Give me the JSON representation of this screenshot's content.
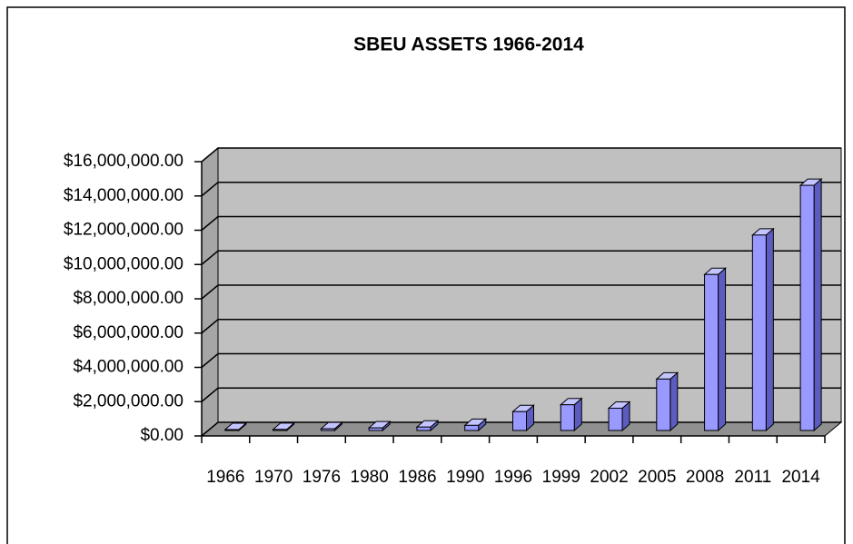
{
  "chart_data": {
    "type": "bar3d",
    "title": "SBEU ASSETS 1966-2014",
    "categories": [
      "1966",
      "1970",
      "1976",
      "1980",
      "1986",
      "1990",
      "1996",
      "1999",
      "2002",
      "2005",
      "2008",
      "2011",
      "2014"
    ],
    "values": [
      50000,
      60000,
      100000,
      150000,
      200000,
      300000,
      1100000,
      1500000,
      1300000,
      3000000,
      9100000,
      11400000,
      14300000
    ],
    "color": "#9999ff",
    "ylim": [
      0,
      16000000
    ],
    "yticks": [
      {
        "value": 0,
        "label": "$0.00"
      },
      {
        "value": 2000000,
        "label": "$2,000,000.00"
      },
      {
        "value": 4000000,
        "label": "$4,000,000.00"
      },
      {
        "value": 6000000,
        "label": "$6,000,000.00"
      },
      {
        "value": 8000000,
        "label": "$8,000,000.00"
      },
      {
        "value": 10000000,
        "label": "$10,000,000.00"
      },
      {
        "value": 12000000,
        "label": "$12,000,000.00"
      },
      {
        "value": 14000000,
        "label": "$14,000,000.00"
      },
      {
        "value": 16000000,
        "label": "$16,000,000.00"
      }
    ],
    "grid": true
  }
}
